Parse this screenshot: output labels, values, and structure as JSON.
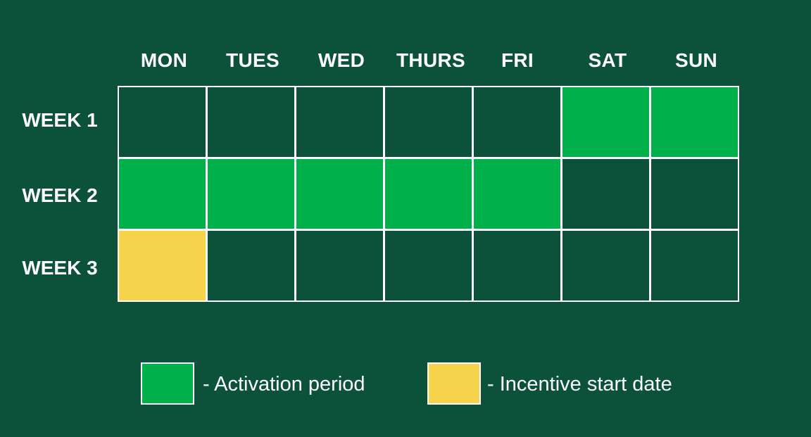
{
  "days": [
    "MON",
    "TUES",
    "WED",
    "THURS",
    "FRI",
    "SAT",
    "SUN"
  ],
  "weeks": [
    "WEEK 1",
    "WEEK 2",
    "WEEK 3"
  ],
  "colors": {
    "background": "#0c523a",
    "activation": "#00b04a",
    "incentive": "#f5d44b",
    "empty": "#0c523a",
    "border": "#ffffff"
  },
  "grid_cells": [
    [
      "empty",
      "empty",
      "empty",
      "empty",
      "empty",
      "activation",
      "activation"
    ],
    [
      "activation",
      "activation",
      "activation",
      "activation",
      "activation",
      "empty",
      "empty"
    ],
    [
      "incentive",
      "empty",
      "empty",
      "empty",
      "empty",
      "empty",
      "empty"
    ]
  ],
  "legend": {
    "activation_label": "- Activation period",
    "incentive_label": "- Incentive start date"
  }
}
